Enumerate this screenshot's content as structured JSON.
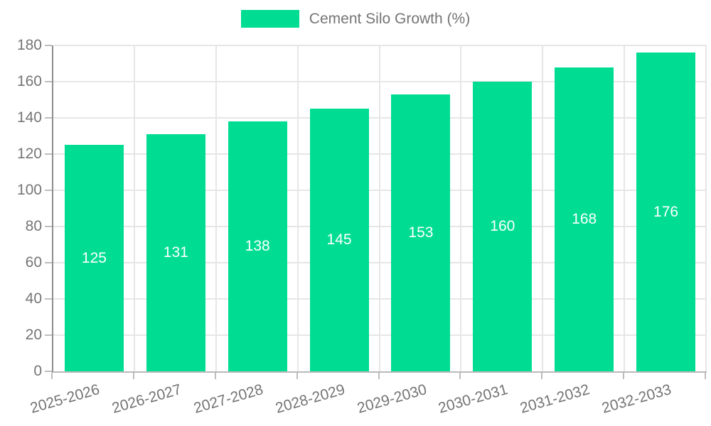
{
  "legend": {
    "label": "Cement Silo Growth (%)"
  },
  "chart_data": {
    "type": "bar",
    "title": "",
    "categories": [
      "2025-2026",
      "2026-2027",
      "2027-2028",
      "2028-2029",
      "2029-2030",
      "2030-2031",
      "2031-2032",
      "2032-2033"
    ],
    "series": [
      {
        "name": "Cement Silo Growth (%)",
        "values": [
          125,
          131,
          138,
          145,
          153,
          160,
          168,
          176
        ]
      }
    ],
    "xlabel": "",
    "ylabel": "",
    "ylim": [
      0,
      180
    ],
    "ytick_step": 20,
    "grid": true,
    "legend_position": "top-center",
    "value_label_position": "inside-center"
  },
  "colors": {
    "bar": "#00dd92",
    "value_label": "#ffffff",
    "axis_label": "#757575",
    "gridline": "#e6e6e6",
    "tick_mark": "#bdbdbd",
    "y_axis_line": "#8e8e8e",
    "x_axis_line": "#b9b9b9",
    "background": "#ffffff"
  }
}
